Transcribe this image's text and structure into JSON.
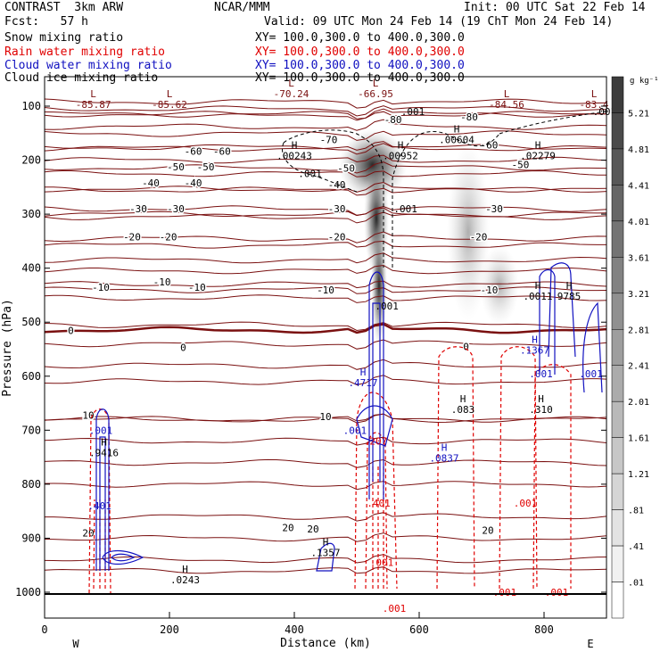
{
  "header": {
    "model": "CONTRAST  3km ARW",
    "org": "NCAR/MMM",
    "init": "Init: 00 UTC Sat 22 Feb 14",
    "fcst": "Fcst:   57 h",
    "valid": "Valid: 09 UTC Mon 24 Feb 14 (19 ChT Mon 24 Feb 14)",
    "fields": [
      {
        "name": "Snow mixing ratio",
        "color": "#000000",
        "xy": "XY= 100.0,300.0 to 400.0,300.0"
      },
      {
        "name": "Rain water mixing ratio",
        "color": "#e00000",
        "xy": "XY= 100.0,300.0 to 400.0,300.0"
      },
      {
        "name": "Cloud water mixing ratio",
        "color": "#1010c0",
        "xy": "XY= 100.0,300.0 to 400.0,300.0"
      },
      {
        "name": "Cloud ice mixing ratio",
        "color": "#000000",
        "xy": "XY= 100.0,300.0 to 400.0,300.0"
      }
    ]
  },
  "chart_data": {
    "type": "cross-section",
    "xlabel": "Distance (km)",
    "ylabel": "Pressure (hPa)",
    "xlim": [
      0,
      900
    ],
    "ylim": [
      1050,
      30
    ],
    "x_ticks": [
      0,
      200,
      400,
      600,
      800
    ],
    "y_ticks": [
      100,
      200,
      300,
      400,
      500,
      600,
      700,
      800,
      900,
      1000
    ],
    "end_labels": {
      "left": "W",
      "right": "E"
    },
    "colorbar": {
      "unit": "g kg⁻¹",
      "labels": [
        "5.21",
        "4.81",
        "4.41",
        "4.01",
        "3.61",
        "3.21",
        "2.81",
        "2.41",
        "2.01",
        "1.61",
        "1.21",
        ".81",
        ".41",
        ".01"
      ]
    },
    "temperature_contours": [
      {
        "value": -80,
        "label": "-80",
        "label_positions": [
          [
            558,
            125
          ],
          [
            680,
            120
          ]
        ]
      },
      {
        "value": -70,
        "label": "-70",
        "label_positions": [
          [
            455,
            162
          ]
        ]
      },
      {
        "value": -60,
        "label": "-60",
        "label_positions": [
          [
            238,
            183
          ],
          [
            284,
            183
          ],
          [
            712,
            172
          ]
        ]
      },
      {
        "value": -50,
        "label": "-50",
        "label_positions": [
          [
            210,
            212
          ],
          [
            258,
            212
          ],
          [
            483,
            215
          ],
          [
            762,
            208
          ]
        ]
      },
      {
        "value": -40,
        "label": "-40",
        "label_positions": [
          [
            170,
            242
          ],
          [
            238,
            242
          ],
          [
            468,
            245
          ]
        ]
      },
      {
        "value": -30,
        "label": "-30",
        "label_positions": [
          [
            150,
            290
          ],
          [
            210,
            290
          ],
          [
            468,
            290
          ],
          [
            720,
            290
          ]
        ]
      },
      {
        "value": -20,
        "label": "-20",
        "label_positions": [
          [
            140,
            342
          ],
          [
            198,
            342
          ],
          [
            468,
            342
          ],
          [
            695,
            342
          ]
        ]
      },
      {
        "value": -10,
        "label": "-10",
        "label_positions": [
          [
            90,
            435
          ],
          [
            188,
            425
          ],
          [
            244,
            435
          ],
          [
            450,
            440
          ],
          [
            712,
            440
          ]
        ]
      },
      {
        "value": 0,
        "label": "0",
        "label_positions": [
          [
            42,
            515
          ],
          [
            222,
            547
          ],
          [
            675,
            545
          ]
        ]
      },
      {
        "value": 10,
        "label": "10",
        "label_positions": [
          [
            70,
            672
          ],
          [
            450,
            675
          ]
        ]
      },
      {
        "value": 20,
        "label": "20",
        "label_positions": [
          [
            70,
            890
          ],
          [
            390,
            880
          ],
          [
            430,
            883
          ],
          [
            710,
            885
          ]
        ]
      }
    ],
    "extrema_labels": [
      {
        "kind": "L",
        "value": "-85.87",
        "x": 78,
        "p": 100
      },
      {
        "kind": "L",
        "value": "-85.62",
        "x": 200,
        "p": 100
      },
      {
        "kind": "L",
        "value": "-70.24",
        "x": 395,
        "p": 80
      },
      {
        "kind": "L",
        "value": "-66.95",
        "x": 530,
        "p": 80
      },
      {
        "kind": "L",
        "value": "-84.56",
        "x": 740,
        "p": 100
      },
      {
        "kind": "L",
        "value": "-83.4",
        "x": 880,
        "p": 100
      },
      {
        "kind": "H",
        "value": ".00243",
        "x": 400,
        "p": 195
      },
      {
        "kind": "H",
        "value": ".00952",
        "x": 570,
        "p": 195
      },
      {
        "kind": "H",
        "value": ".00604",
        "x": 660,
        "p": 165
      },
      {
        "kind": "H",
        "value": ".02279",
        "x": 790,
        "p": 195
      },
      {
        "kind": "H",
        "value": ".0011",
        "x": 790,
        "p": 455
      },
      {
        "kind": "H",
        "value": "9785",
        "x": 840,
        "p": 455
      },
      {
        "kind": "H",
        "value": ".1367",
        "x": 785,
        "p": 555
      },
      {
        "kind": "H",
        "value": ".4717",
        "x": 510,
        "p": 615
      },
      {
        "kind": "H",
        "value": ".083",
        "x": 670,
        "p": 665
      },
      {
        "kind": "H",
        "value": ".310",
        "x": 795,
        "p": 665
      },
      {
        "kind": "H",
        "value": ".0837",
        "x": 640,
        "p": 755
      },
      {
        "kind": "H",
        "value": ".9416",
        "x": 95,
        "p": 745
      },
      {
        "kind": "H",
        "value": ".1357",
        "x": 450,
        "p": 930
      },
      {
        "kind": "H",
        "value": ".0243",
        "x": 225,
        "p": 980
      }
    ],
    "value_labels": [
      {
        "text": ".001",
        "x": 590,
        "p": 110,
        "color": "#000000"
      },
      {
        "text": ".001",
        "x": 897,
        "p": 110,
        "color": "#000000"
      },
      {
        "text": ".001",
        "x": 425,
        "p": 225,
        "color": "#000000"
      },
      {
        "text": ".001",
        "x": 578,
        "p": 290,
        "color": "#000000"
      },
      {
        "text": ".001",
        "x": 548,
        "p": 470,
        "color": "#000000"
      },
      {
        "text": ".001",
        "x": 795,
        "p": 595,
        "color": "#1010c0"
      },
      {
        "text": ".001",
        "x": 875,
        "p": 595,
        "color": "#1010c0"
      },
      {
        "text": ".001",
        "x": 497,
        "p": 700,
        "color": "#1010c0"
      },
      {
        "text": ".001",
        "x": 90,
        "p": 700,
        "color": "#1010c0"
      },
      {
        "text": ".401",
        "x": 88,
        "p": 840,
        "color": "#1010c0"
      },
      {
        "text": ".001",
        "x": 770,
        "p": 835,
        "color": "#e00000"
      },
      {
        "text": ".401",
        "x": 535,
        "p": 835,
        "color": "#e00000"
      },
      {
        "text": ".001",
        "x": 540,
        "p": 945,
        "color": "#e00000"
      },
      {
        "text": ".001",
        "x": 737,
        "p": 1000,
        "color": "#e00000"
      },
      {
        "text": ".001",
        "x": 820,
        "p": 1000,
        "color": "#e00000"
      },
      {
        "text": ".001",
        "x": 560,
        "p": 1030,
        "color": "#e00000"
      },
      {
        "text": ".207",
        "x": 530,
        "p": 720,
        "color": "#e00000"
      }
    ]
  }
}
